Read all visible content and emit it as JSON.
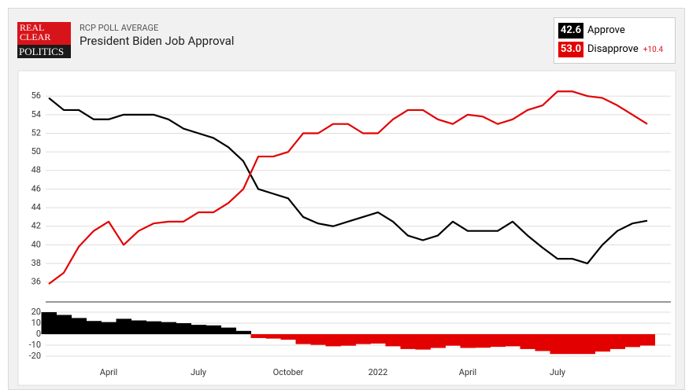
{
  "header": {
    "logo": [
      "REAL",
      "CLEAR",
      "POLITICS"
    ],
    "kicker": "RCP POLL AVERAGE",
    "title": "President Biden Job Approval",
    "legend": [
      {
        "value": "42.6",
        "name": "Approve"
      },
      {
        "value": "53.0",
        "name": "Disapprove"
      }
    ],
    "spread": "+10.4"
  },
  "chart_data": [
    {
      "type": "line",
      "ylim": [
        34.2,
        58.3
      ],
      "yticks": [
        36,
        38,
        40,
        42,
        44,
        46,
        48,
        50,
        52,
        54,
        56
      ],
      "grid": true,
      "series": [
        {
          "name": "Approve",
          "color": "#000000",
          "values": [
            55.8,
            54.5,
            54.5,
            53.5,
            53.5,
            54,
            54,
            54,
            53.5,
            52.5,
            52,
            51.5,
            50.5,
            49,
            46,
            45.5,
            45,
            43,
            42.3,
            42,
            42.5,
            43,
            43.5,
            42.5,
            41,
            40.5,
            41,
            42.5,
            41.5,
            41.5,
            41.5,
            42.5,
            41,
            39.7,
            38.5,
            38.5,
            38,
            40,
            41.5,
            42.3,
            42.6
          ]
        },
        {
          "name": "Disapprove",
          "color": "#e30000",
          "values": [
            35.8,
            37,
            39.8,
            41.5,
            42.5,
            40,
            41.5,
            42.3,
            42.5,
            42.5,
            43.5,
            43.5,
            44.5,
            46,
            49.5,
            49.5,
            50,
            52,
            52,
            53,
            53,
            52,
            52,
            53.5,
            54.5,
            54.5,
            53.5,
            53,
            54,
            53.8,
            53,
            53.5,
            54.5,
            55,
            56.5,
            56.5,
            56,
            55.8,
            55,
            54,
            53.0
          ]
        }
      ]
    },
    {
      "type": "area",
      "ylim": [
        -25,
        28.6
      ],
      "yticks": [
        20,
        10,
        0,
        -10,
        -20
      ],
      "positive_color": "#000000",
      "negative_color": "#e30000",
      "categories": [
        null,
        null,
        null,
        null,
        "April",
        null,
        null,
        null,
        null,
        null,
        "July",
        null,
        null,
        null,
        null,
        null,
        "October",
        null,
        null,
        null,
        null,
        null,
        "2022",
        null,
        null,
        null,
        null,
        null,
        "April",
        null,
        null,
        null,
        null,
        null,
        "July",
        null,
        null,
        null,
        null,
        null,
        null
      ],
      "values": [
        20,
        17.5,
        14.7,
        12,
        11,
        14,
        12.5,
        11.7,
        11,
        10,
        8.5,
        8,
        6,
        3,
        -3.5,
        -4,
        -5,
        -9,
        -9.7,
        -11,
        -10.5,
        -9,
        -8.5,
        -11,
        -13.5,
        -14,
        -12.5,
        -10.5,
        -12.5,
        -12.3,
        -11.5,
        -11,
        -13.5,
        -15.3,
        -18,
        -18,
        -18,
        -15.8,
        -13.5,
        -11.7,
        -10.4
      ]
    }
  ]
}
